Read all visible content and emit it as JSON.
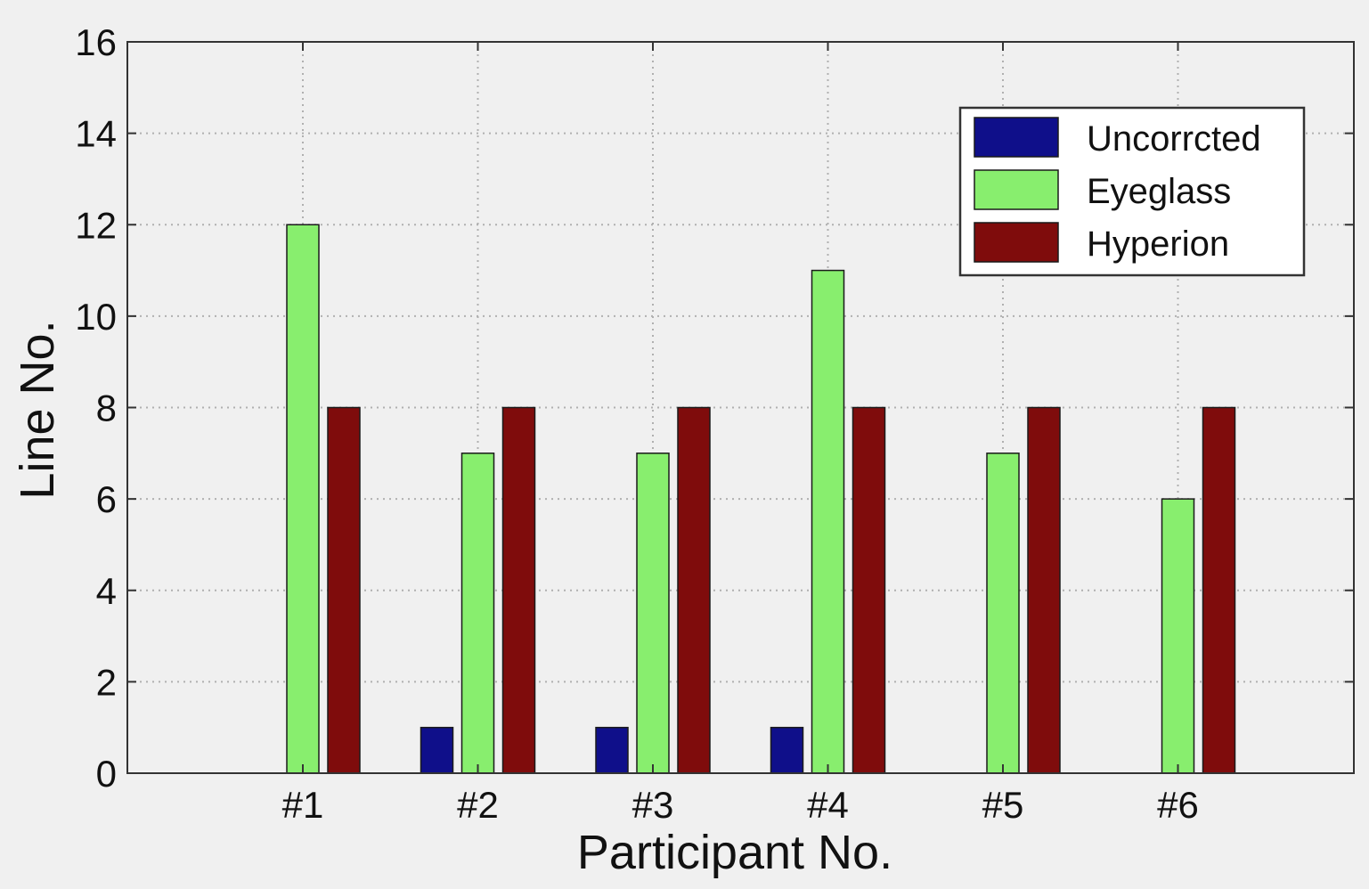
{
  "chart_data": {
    "type": "bar",
    "categories": [
      "#1",
      "#2",
      "#3",
      "#4",
      "#5",
      "#6"
    ],
    "series": [
      {
        "name": "Uncorrcted",
        "values": [
          0,
          1,
          1,
          1,
          0,
          0
        ],
        "color": "#0f0f8a"
      },
      {
        "name": "Eyeglass",
        "values": [
          12,
          7,
          7,
          11,
          7,
          6
        ],
        "color": "#88ee6e"
      },
      {
        "name": "Hyperion",
        "values": [
          8,
          8,
          8,
          8,
          8,
          8
        ],
        "color": "#7f0c0c"
      }
    ],
    "xlabel": "Participant No.",
    "ylabel": "Line No.",
    "ylim": [
      0,
      16
    ],
    "yticks": [
      "0",
      "2",
      "4",
      "6",
      "8",
      "10",
      "12",
      "14",
      "16"
    ],
    "grid": true,
    "legend_position": "top-right"
  },
  "colors": {
    "background": "#f0f0f0",
    "plot_area": "#f0f0f0",
    "grid": "#b0b0b0",
    "axis": "#333333"
  }
}
